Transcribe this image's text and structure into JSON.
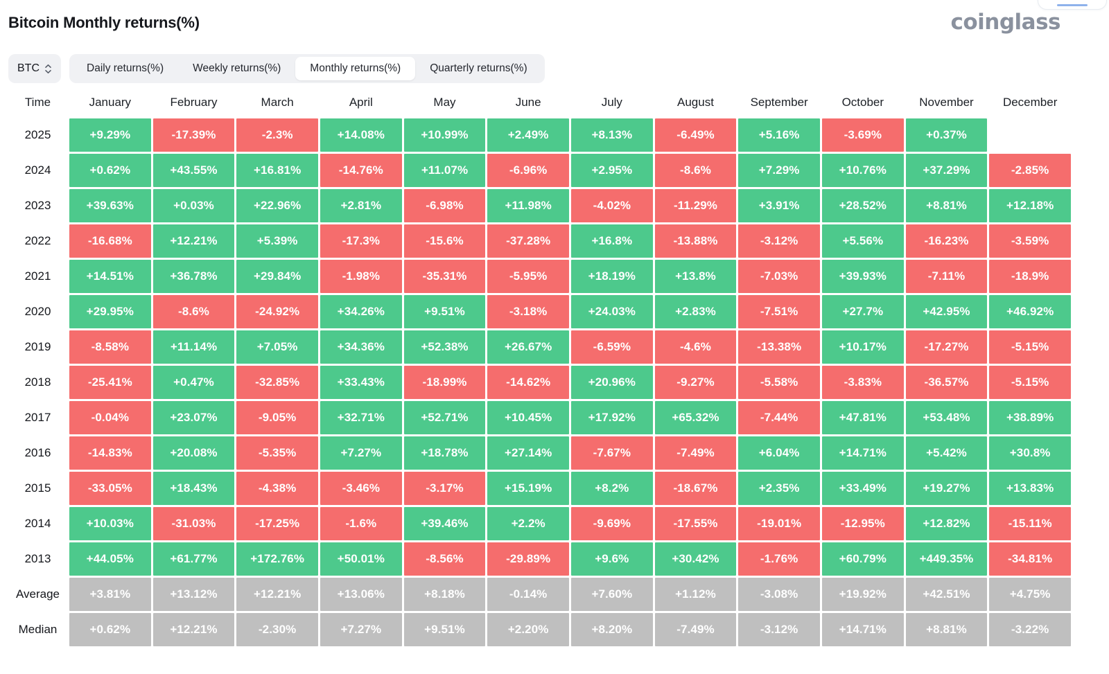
{
  "header": {
    "title": "Bitcoin Monthly returns(%)",
    "logo": "coinglass"
  },
  "controls": {
    "symbol_select": {
      "value": "BTC",
      "icon": "updown-chevron-icon"
    },
    "tabs": [
      {
        "label": "Daily returns(%)",
        "active": false
      },
      {
        "label": "Weekly returns(%)",
        "active": false
      },
      {
        "label": "Monthly returns(%)",
        "active": true
      },
      {
        "label": "Quarterly returns(%)",
        "active": false
      }
    ]
  },
  "colors": {
    "positive": "#4dc98c",
    "negative": "#f56d6d",
    "neutral": "#bfbfbf"
  },
  "table": {
    "columns": [
      "Time",
      "January",
      "February",
      "March",
      "April",
      "May",
      "June",
      "July",
      "August",
      "September",
      "October",
      "November",
      "December"
    ],
    "rows": [
      {
        "label": "2025",
        "type": "year",
        "values": [
          "+9.29%",
          "-17.39%",
          "-2.3%",
          "+14.08%",
          "+10.99%",
          "+2.49%",
          "+8.13%",
          "-6.49%",
          "+5.16%",
          "-3.69%",
          "+0.37%",
          ""
        ]
      },
      {
        "label": "2024",
        "type": "year",
        "values": [
          "+0.62%",
          "+43.55%",
          "+16.81%",
          "-14.76%",
          "+11.07%",
          "-6.96%",
          "+2.95%",
          "-8.6%",
          "+7.29%",
          "+10.76%",
          "+37.29%",
          "-2.85%"
        ]
      },
      {
        "label": "2023",
        "type": "year",
        "values": [
          "+39.63%",
          "+0.03%",
          "+22.96%",
          "+2.81%",
          "-6.98%",
          "+11.98%",
          "-4.02%",
          "-11.29%",
          "+3.91%",
          "+28.52%",
          "+8.81%",
          "+12.18%"
        ]
      },
      {
        "label": "2022",
        "type": "year",
        "values": [
          "-16.68%",
          "+12.21%",
          "+5.39%",
          "-17.3%",
          "-15.6%",
          "-37.28%",
          "+16.8%",
          "-13.88%",
          "-3.12%",
          "+5.56%",
          "-16.23%",
          "-3.59%"
        ]
      },
      {
        "label": "2021",
        "type": "year",
        "values": [
          "+14.51%",
          "+36.78%",
          "+29.84%",
          "-1.98%",
          "-35.31%",
          "-5.95%",
          "+18.19%",
          "+13.8%",
          "-7.03%",
          "+39.93%",
          "-7.11%",
          "-18.9%"
        ]
      },
      {
        "label": "2020",
        "type": "year",
        "values": [
          "+29.95%",
          "-8.6%",
          "-24.92%",
          "+34.26%",
          "+9.51%",
          "-3.18%",
          "+24.03%",
          "+2.83%",
          "-7.51%",
          "+27.7%",
          "+42.95%",
          "+46.92%"
        ]
      },
      {
        "label": "2019",
        "type": "year",
        "values": [
          "-8.58%",
          "+11.14%",
          "+7.05%",
          "+34.36%",
          "+52.38%",
          "+26.67%",
          "-6.59%",
          "-4.6%",
          "-13.38%",
          "+10.17%",
          "-17.27%",
          "-5.15%"
        ]
      },
      {
        "label": "2018",
        "type": "year",
        "values": [
          "-25.41%",
          "+0.47%",
          "-32.85%",
          "+33.43%",
          "-18.99%",
          "-14.62%",
          "+20.96%",
          "-9.27%",
          "-5.58%",
          "-3.83%",
          "-36.57%",
          "-5.15%"
        ]
      },
      {
        "label": "2017",
        "type": "year",
        "values": [
          "-0.04%",
          "+23.07%",
          "-9.05%",
          "+32.71%",
          "+52.71%",
          "+10.45%",
          "+17.92%",
          "+65.32%",
          "-7.44%",
          "+47.81%",
          "+53.48%",
          "+38.89%"
        ]
      },
      {
        "label": "2016",
        "type": "year",
        "values": [
          "-14.83%",
          "+20.08%",
          "-5.35%",
          "+7.27%",
          "+18.78%",
          "+27.14%",
          "-7.67%",
          "-7.49%",
          "+6.04%",
          "+14.71%",
          "+5.42%",
          "+30.8%"
        ]
      },
      {
        "label": "2015",
        "type": "year",
        "values": [
          "-33.05%",
          "+18.43%",
          "-4.38%",
          "-3.46%",
          "-3.17%",
          "+15.19%",
          "+8.2%",
          "-18.67%",
          "+2.35%",
          "+33.49%",
          "+19.27%",
          "+13.83%"
        ]
      },
      {
        "label": "2014",
        "type": "year",
        "values": [
          "+10.03%",
          "-31.03%",
          "-17.25%",
          "-1.6%",
          "+39.46%",
          "+2.2%",
          "-9.69%",
          "-17.55%",
          "-19.01%",
          "-12.95%",
          "+12.82%",
          "-15.11%"
        ]
      },
      {
        "label": "2013",
        "type": "year",
        "values": [
          "+44.05%",
          "+61.77%",
          "+172.76%",
          "+50.01%",
          "-8.56%",
          "-29.89%",
          "+9.6%",
          "+30.42%",
          "-1.76%",
          "+60.79%",
          "+449.35%",
          "-34.81%"
        ]
      },
      {
        "label": "Average",
        "type": "summary",
        "values": [
          "+3.81%",
          "+13.12%",
          "+12.21%",
          "+13.06%",
          "+8.18%",
          "-0.14%",
          "+7.60%",
          "+1.12%",
          "-3.08%",
          "+19.92%",
          "+42.51%",
          "+4.75%"
        ]
      },
      {
        "label": "Median",
        "type": "summary",
        "values": [
          "+0.62%",
          "+12.21%",
          "-2.30%",
          "+7.27%",
          "+9.51%",
          "+2.20%",
          "+8.20%",
          "-7.49%",
          "-3.12%",
          "+14.71%",
          "+8.81%",
          "-3.22%"
        ]
      }
    ]
  }
}
